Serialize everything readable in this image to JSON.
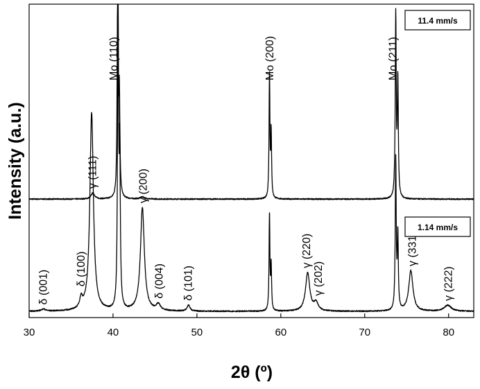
{
  "chart_data": {
    "type": "line",
    "title": "",
    "xlabel": "2θ (º)",
    "ylabel": "Intensity (a.u.)",
    "xlim": [
      30,
      83
    ],
    "x_ticks": [
      30,
      40,
      50,
      60,
      70,
      80
    ],
    "x_tick_labels": [
      "30",
      "40",
      "50",
      "60",
      "70",
      "80"
    ],
    "y_ticks_shown": false,
    "series": [
      {
        "name": "11.4 mm/s",
        "panel": "top",
        "baseline": 0.02,
        "peaks": [
          {
            "x": 37.6,
            "h": 0.03,
            "w": 0.25
          },
          {
            "x": 40.55,
            "h": 1.0,
            "w": 0.07
          },
          {
            "x": 40.75,
            "h": 0.5,
            "w": 0.08
          },
          {
            "x": 43.5,
            "h": 0.01,
            "w": 0.3
          },
          {
            "x": 58.65,
            "h": 0.62,
            "w": 0.06
          },
          {
            "x": 58.85,
            "h": 0.32,
            "w": 0.06
          },
          {
            "x": 73.7,
            "h": 0.9,
            "w": 0.07
          },
          {
            "x": 73.95,
            "h": 0.57,
            "w": 0.07
          }
        ],
        "peak_labels": [
          {
            "text": "γ (111)",
            "x": 37.5
          },
          {
            "text": "Mo (110)",
            "x": 40.0
          },
          {
            "text": "Mo (200)",
            "x": 58.6
          },
          {
            "text": "Mo (211)",
            "x": 73.3
          }
        ]
      },
      {
        "name": "1.14 mm/s",
        "panel": "bottom",
        "baseline": 0.02,
        "peaks": [
          {
            "x": 31.7,
            "h": 0.01,
            "w": 0.3
          },
          {
            "x": 36.2,
            "h": 0.05,
            "w": 0.2
          },
          {
            "x": 37.45,
            "h": 0.98,
            "w": 0.25
          },
          {
            "x": 40.6,
            "h": 1.55,
            "w": 0.07
          },
          {
            "x": 40.8,
            "h": 0.75,
            "w": 0.08
          },
          {
            "x": 43.5,
            "h": 0.51,
            "w": 0.28
          },
          {
            "x": 45.4,
            "h": 0.03,
            "w": 0.3
          },
          {
            "x": 49.0,
            "h": 0.03,
            "w": 0.2
          },
          {
            "x": 58.65,
            "h": 0.48,
            "w": 0.06
          },
          {
            "x": 58.85,
            "h": 0.22,
            "w": 0.06
          },
          {
            "x": 63.2,
            "h": 0.19,
            "w": 0.3
          },
          {
            "x": 64.2,
            "h": 0.04,
            "w": 0.3
          },
          {
            "x": 73.7,
            "h": 0.74,
            "w": 0.07
          },
          {
            "x": 73.95,
            "h": 0.36,
            "w": 0.07
          },
          {
            "x": 75.5,
            "h": 0.2,
            "w": 0.3
          },
          {
            "x": 79.9,
            "h": 0.03,
            "w": 0.5
          }
        ],
        "peak_labels": [
          {
            "text": "δ (001)",
            "x": 31.6
          },
          {
            "text": "δ (100)",
            "x": 36.1
          },
          {
            "text": "γ (200)",
            "x": 43.5
          },
          {
            "text": "δ (004)",
            "x": 45.4
          },
          {
            "text": "δ (101)",
            "x": 48.9
          },
          {
            "text": "γ (220)",
            "x": 63.0
          },
          {
            "text": "γ (202)",
            "x": 64.4
          },
          {
            "text": "γ (331)",
            "x": 75.6
          },
          {
            "text": "γ (222)",
            "x": 79.9
          }
        ]
      }
    ],
    "legend": [
      "11.4 mm/s",
      "1.14 mm/s"
    ],
    "grid": false
  }
}
